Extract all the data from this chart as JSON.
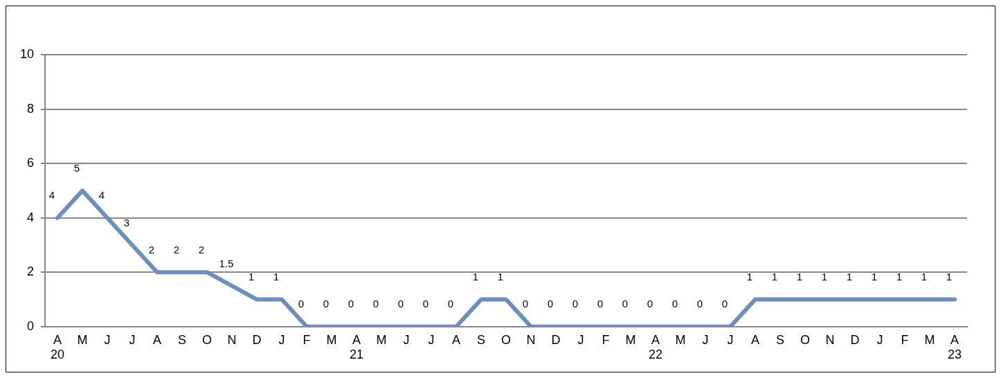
{
  "chart_data": {
    "type": "line",
    "categories": [
      "A\n20",
      "M",
      "J",
      "J",
      "A",
      "S",
      "O",
      "N",
      "D",
      "J",
      "F",
      "M",
      "A\n21",
      "M",
      "J",
      "J",
      "A",
      "S",
      "O",
      "N",
      "D",
      "J",
      "F",
      "M",
      "A\n22",
      "M",
      "J",
      "J",
      "A",
      "S",
      "O",
      "N",
      "D",
      "J",
      "F",
      "M",
      "A\n23"
    ],
    "values": [
      4,
      5,
      4,
      3,
      2,
      2,
      2,
      1.5,
      1,
      1,
      0,
      0,
      0,
      0,
      0,
      0,
      0,
      1,
      1,
      0,
      0,
      0,
      0,
      0,
      0,
      0,
      0,
      0,
      1,
      1,
      1,
      1,
      1,
      1,
      1,
      1,
      1
    ],
    "color": "#6b8fbf",
    "ylim": [
      0,
      10
    ],
    "yticks": [
      0,
      2,
      4,
      6,
      8,
      10
    ],
    "grid": "y",
    "legend": false,
    "marker": "none",
    "line_style": "solid",
    "data_labels": true
  }
}
